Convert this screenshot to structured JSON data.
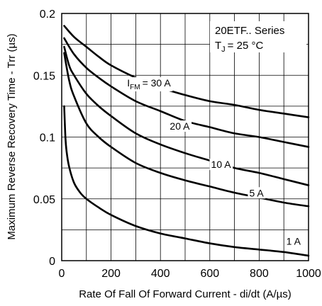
{
  "chart_data": {
    "type": "line",
    "title": "",
    "xlabel": "Rate Of Fall Of Forward Current - di/dt (A/µs)",
    "ylabel": "Maximum Reverse Recovery Time - Trr (µs)",
    "xlim": [
      0,
      1000
    ],
    "ylim": [
      0,
      0.2
    ],
    "xticks": [
      0,
      200,
      400,
      600,
      800,
      1000
    ],
    "xtick_labels": [
      "0",
      "200",
      "400",
      "600",
      "800",
      "1000"
    ],
    "yticks": [
      0,
      0.05,
      0.1,
      0.15,
      0.2
    ],
    "ytick_labels": [
      "0",
      "0.05",
      "0.1",
      "0.15",
      "0.2"
    ],
    "grid": true,
    "annotation": {
      "series_name": "20ETF.. Series",
      "temp_prefix": "T",
      "temp_sub": "J",
      "temp_value": "= 25 °C"
    },
    "series": [
      {
        "name": "I_FM = 30 A",
        "label_prefix": "I",
        "label_sub": "FM",
        "label_value": "= 30 A",
        "label_at": [
          265,
          0.141
        ],
        "x": [
          10,
          50,
          100,
          150,
          200,
          300,
          400,
          500,
          600,
          700,
          800,
          900,
          1000
        ],
        "y": [
          0.19,
          0.181,
          0.173,
          0.165,
          0.158,
          0.148,
          0.14,
          0.134,
          0.129,
          0.126,
          0.122,
          0.119,
          0.116
        ]
      },
      {
        "name": "20 A",
        "label": "20 A",
        "label_at": [
          438,
          0.106
        ],
        "x": [
          10,
          50,
          100,
          150,
          200,
          300,
          400,
          500,
          600,
          700,
          800,
          900,
          1000
        ],
        "y": [
          0.18,
          0.167,
          0.156,
          0.148,
          0.141,
          0.129,
          0.121,
          0.113,
          0.108,
          0.103,
          0.1,
          0.096,
          0.092
        ]
      },
      {
        "name": "10 A",
        "label": "10 A",
        "label_at": [
          605,
          0.075
        ],
        "x": [
          10,
          30,
          50,
          100,
          150,
          200,
          300,
          400,
          500,
          600,
          700,
          800,
          900,
          1000
        ],
        "y": [
          0.173,
          0.158,
          0.15,
          0.135,
          0.125,
          0.117,
          0.103,
          0.094,
          0.087,
          0.081,
          0.075,
          0.071,
          0.066,
          0.061
        ]
      },
      {
        "name": "5 A",
        "label": "5 A",
        "label_at": [
          760,
          0.052
        ],
        "x": [
          10,
          30,
          50,
          100,
          150,
          200,
          300,
          400,
          500,
          600,
          700,
          800,
          900,
          1000
        ],
        "y": [
          0.168,
          0.146,
          0.133,
          0.111,
          0.1,
          0.092,
          0.079,
          0.071,
          0.065,
          0.06,
          0.055,
          0.051,
          0.047,
          0.044
        ]
      },
      {
        "name": "1 A",
        "label": "1 A",
        "label_at": [
          910,
          0.013
        ],
        "x": [
          10,
          15,
          20,
          30,
          50,
          75,
          100,
          150,
          200,
          300,
          400,
          500,
          600,
          700,
          800,
          900,
          1000
        ],
        "y": [
          0.125,
          0.1,
          0.088,
          0.076,
          0.063,
          0.055,
          0.05,
          0.043,
          0.037,
          0.028,
          0.022,
          0.018,
          0.014,
          0.011,
          0.009,
          0.007,
          0.004
        ]
      }
    ]
  }
}
